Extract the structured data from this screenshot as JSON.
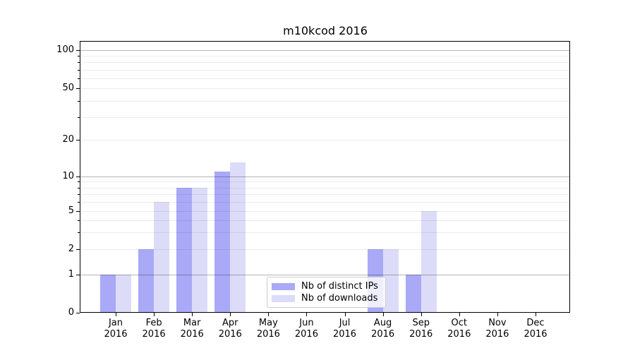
{
  "title": "m10kcod 2016",
  "colors": {
    "distinct_ips": "#a9a9f7",
    "downloads": "#dcdcf9",
    "grid_minor": "rgba(0,0,0,0.075)",
    "grid_major": "rgba(0,0,0,0.29)",
    "axis": "#000000",
    "legend_border": "#cccccc"
  },
  "legend": {
    "items": [
      {
        "label": "Nb of distinct IPs",
        "color": "#a9a9f7"
      },
      {
        "label": "Nb of downloads",
        "color": "#dcdcf9"
      }
    ]
  },
  "chart_data": {
    "type": "bar",
    "title": "m10kcod 2016",
    "categories": [
      "Jan 2016",
      "Feb 2016",
      "Mar 2016",
      "Apr 2016",
      "May 2016",
      "Jun 2016",
      "Jul 2016",
      "Aug 2016",
      "Sep 2016",
      "Oct 2016",
      "Nov 2016",
      "Dec 2016"
    ],
    "series": [
      {
        "name": "Nb of distinct IPs",
        "color": "#a9a9f7",
        "values": [
          1,
          2,
          8,
          11,
          0,
          0,
          0,
          2,
          1,
          0,
          0,
          0
        ]
      },
      {
        "name": "Nb of downloads",
        "color": "#dcdcf9",
        "values": [
          1,
          6,
          8,
          13,
          0,
          0,
          0,
          2,
          5,
          0,
          0,
          0
        ]
      }
    ],
    "xlabel": "",
    "ylabel": "",
    "y_axis": {
      "scale": "symlog (linear 0-1, logarithmic above 1)",
      "labeled_ticks": [
        0,
        1,
        2,
        5,
        10,
        20,
        50,
        100
      ],
      "major_gridlines": [
        1,
        10,
        100
      ],
      "minor_gridlines": [
        2,
        3,
        4,
        5,
        6,
        7,
        8,
        9,
        20,
        30,
        40,
        50,
        60,
        70,
        80,
        90
      ],
      "ylim": [
        0,
        120
      ]
    },
    "grid": "horizontal gridlines drawn over bars",
    "legend_position": "lower center-right inside plot"
  }
}
